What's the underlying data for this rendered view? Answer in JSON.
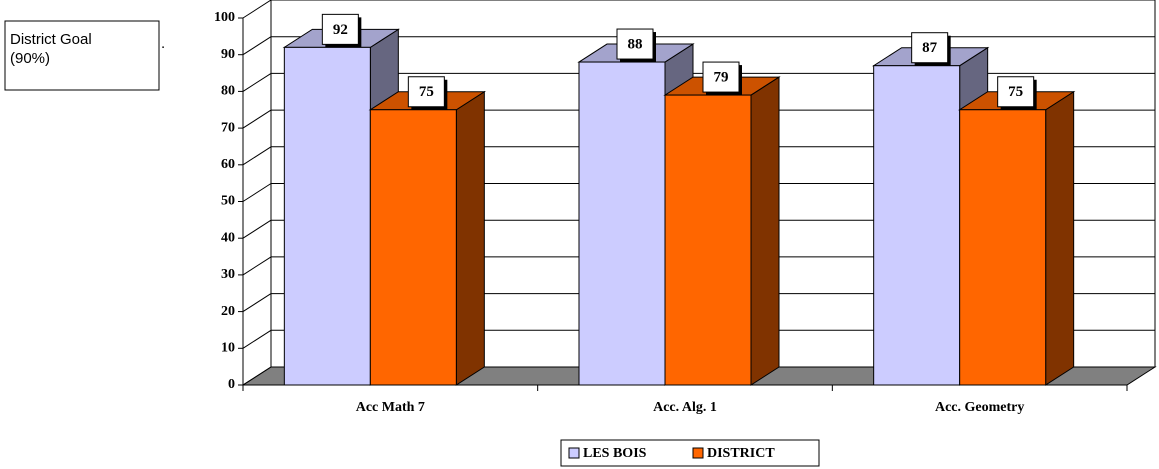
{
  "chart_data": {
    "type": "bar",
    "annotation": [
      "District Goal",
      "(90%)"
    ],
    "annotation_dot": ".",
    "categories": [
      "Acc Math 7",
      "Acc. Alg. 1",
      "Acc. Geometry"
    ],
    "series": [
      {
        "name": "LES BOIS",
        "color": "#ccccff",
        "values": [
          92,
          88,
          87
        ]
      },
      {
        "name": "DISTRICT",
        "color": "#ff6600",
        "values": [
          75,
          79,
          75
        ]
      }
    ],
    "ylim": [
      0,
      100
    ],
    "yticks": [
      0,
      10,
      20,
      30,
      40,
      50,
      60,
      70,
      80,
      90,
      100
    ],
    "grid": true
  }
}
